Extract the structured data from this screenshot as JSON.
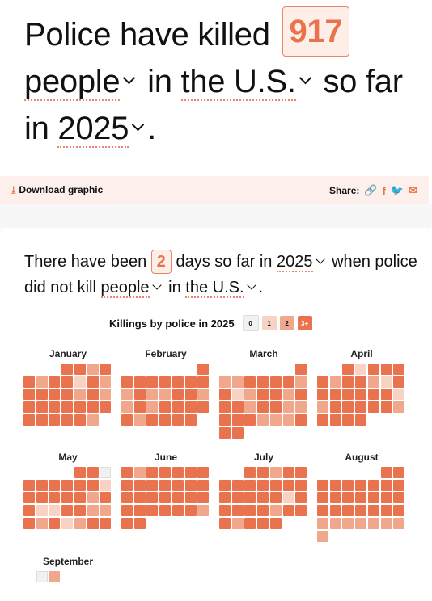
{
  "headline": {
    "p1": "Police have killed",
    "count": "917",
    "p2": "people",
    "p3": "in",
    "p4": "the U.S.",
    "p5": "so far in",
    "p6": "2025",
    "p7": "."
  },
  "toolbar": {
    "download_label": "Download graphic",
    "share_label": "Share:"
  },
  "sentence": {
    "p1": "There have been",
    "count": "2",
    "p2": "days so far in",
    "year": "2025",
    "p3": "when police did not kill",
    "who": "people",
    "p4": "in",
    "where": "the U.S.",
    "p5": "."
  },
  "legend": {
    "title": "Killings by police in 2025",
    "keys": [
      "0",
      "1",
      "2",
      "3+"
    ]
  },
  "colors": {
    "accent": "#e9734f",
    "level0": "#f1f1f1",
    "level1": "#f8d2c4",
    "level2": "#f0a78c",
    "level3": "#e9734f"
  },
  "months": [
    {
      "name": "January",
      "startDow": 3,
      "levels": [
        3,
        3,
        2,
        3,
        3,
        2,
        3,
        3,
        1,
        3,
        2,
        3,
        3,
        3,
        3,
        2,
        3,
        2,
        3,
        3,
        3,
        3,
        3,
        3,
        3,
        3,
        3,
        3,
        3,
        3,
        2
      ]
    },
    {
      "name": "February",
      "startDow": 6,
      "levels": [
        3,
        3,
        3,
        3,
        3,
        3,
        3,
        3,
        2,
        3,
        2,
        2,
        3,
        3,
        2,
        2,
        3,
        2,
        3,
        3,
        3,
        3,
        3,
        2,
        3,
        3,
        3,
        3
      ]
    },
    {
      "name": "March",
      "startDow": 6,
      "levels": [
        3,
        2,
        2,
        3,
        3,
        3,
        3,
        2,
        3,
        1,
        2,
        3,
        3,
        2,
        3,
        3,
        3,
        2,
        3,
        3,
        2,
        2,
        3,
        3,
        3,
        2,
        2,
        2,
        3,
        3,
        3
      ]
    },
    {
      "name": "April",
      "startDow": 2,
      "levels": [
        3,
        1,
        3,
        3,
        3,
        3,
        2,
        3,
        3,
        2,
        1,
        3,
        3,
        3,
        3,
        3,
        3,
        3,
        1,
        2,
        3,
        3,
        3,
        3,
        3,
        2,
        3,
        3,
        3,
        3
      ]
    },
    {
      "name": "May",
      "startDow": 4,
      "levels": [
        3,
        3,
        0,
        3,
        3,
        3,
        3,
        3,
        3,
        1,
        3,
        3,
        3,
        3,
        3,
        2,
        3,
        3,
        1,
        1,
        3,
        3,
        2,
        2,
        3,
        2,
        3,
        1,
        2,
        3,
        3
      ]
    },
    {
      "name": "June",
      "startDow": 0,
      "levels": [
        3,
        2,
        3,
        3,
        3,
        3,
        3,
        3,
        3,
        3,
        3,
        3,
        3,
        3,
        3,
        3,
        3,
        3,
        3,
        3,
        3,
        3,
        3,
        3,
        3,
        3,
        3,
        2,
        3,
        3
      ]
    },
    {
      "name": "July",
      "startDow": 2,
      "levels": [
        3,
        3,
        2,
        3,
        3,
        3,
        3,
        3,
        3,
        3,
        3,
        3,
        3,
        3,
        3,
        3,
        3,
        1,
        3,
        3,
        3,
        3,
        3,
        2,
        3,
        3,
        3,
        2,
        3,
        3,
        3
      ]
    },
    {
      "name": "August",
      "startDow": 5,
      "levels": [
        3,
        3,
        3,
        3,
        3,
        3,
        3,
        3,
        3,
        3,
        3,
        3,
        3,
        3,
        3,
        3,
        3,
        3,
        3,
        3,
        3,
        3,
        3,
        2,
        2,
        2,
        2,
        2,
        2,
        2,
        2
      ]
    },
    {
      "name": "September",
      "startDow": 1,
      "levels": [
        0,
        2
      ]
    }
  ]
}
